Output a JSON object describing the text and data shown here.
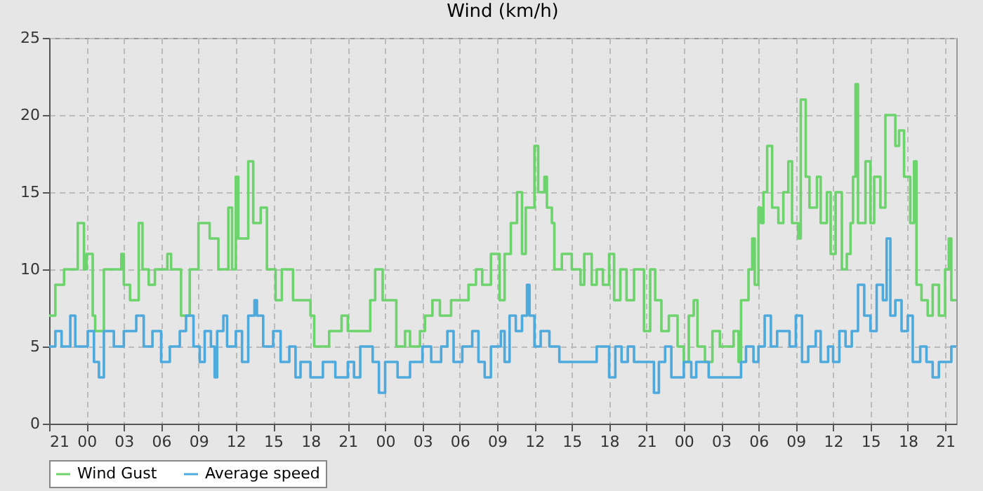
{
  "chart_data": {
    "type": "step",
    "title": "Wind (km/h)",
    "xlim": [
      "--01-01T21:00",
      "--01-04T21:54"
    ],
    "xticks": [
      {
        "value": "--01-01T21:00",
        "label": "21"
      },
      {
        "value": "--01-02T00:00",
        "label": "00"
      },
      {
        "value": "--01-02T03:00",
        "label": "03"
      },
      {
        "value": "--01-02T06:00",
        "label": "06"
      },
      {
        "value": "--01-02T09:00",
        "label": "09"
      },
      {
        "value": "--01-02T12:00",
        "label": "12"
      },
      {
        "value": "--01-02T15:00",
        "label": "15"
      },
      {
        "value": "--01-02T18:00",
        "label": "18"
      },
      {
        "value": "--01-02T21:00",
        "label": "21"
      },
      {
        "value": "--01-03T00:00",
        "label": "00"
      },
      {
        "value": "--01-03T03:00",
        "label": "03"
      },
      {
        "value": "--01-03T06:00",
        "label": "06"
      },
      {
        "value": "--01-03T09:00",
        "label": "09"
      },
      {
        "value": "--01-03T12:00",
        "label": "12"
      },
      {
        "value": "--01-03T15:00",
        "label": "15"
      },
      {
        "value": "--01-03T18:00",
        "label": "18"
      },
      {
        "value": "--01-03T21:00",
        "label": "21"
      },
      {
        "value": "--01-04T00:00",
        "label": "00"
      },
      {
        "value": "--01-04T03:00",
        "label": "03"
      },
      {
        "value": "--01-04T06:00",
        "label": "06"
      },
      {
        "value": "--01-04T09:00",
        "label": "09"
      },
      {
        "value": "--01-04T12:00",
        "label": "12"
      },
      {
        "value": "--01-04T15:00",
        "label": "15"
      },
      {
        "value": "--01-04T18:00",
        "label": "18"
      },
      {
        "value": "--01-04T21:00",
        "label": "21"
      }
    ],
    "ylim": [
      0,
      25
    ],
    "yticks": [
      0,
      5,
      10,
      15,
      20,
      25
    ],
    "grid": true,
    "line_style": "solid",
    "legend": "bottom",
    "series": [
      {
        "name": "Wind Gust",
        "color": "#6dd36d",
        "x": [
          "--01-01T21:00",
          "--01-01T21:30",
          "--01-01T22:12",
          "--01-01T23:18",
          "--01-01T23:48",
          "--01-02T00:00",
          "--01-02T00:30",
          "--01-02T00:42",
          "--01-02T01:24",
          "--01-02T02:48",
          "--01-02T03:00",
          "--01-02T03:30",
          "--01-02T04:12",
          "--01-02T04:30",
          "--01-02T05:00",
          "--01-02T05:30",
          "--01-02T06:30",
          "--01-02T06:48",
          "--01-02T07:36",
          "--01-02T08:18",
          "--01-02T09:00",
          "--01-02T09:54",
          "--01-02T10:36",
          "--01-02T11:24",
          "--01-02T11:42",
          "--01-02T12:00",
          "--01-02T12:12",
          "--01-02T12:48",
          "--01-02T13:00",
          "--01-02T13:24",
          "--01-02T14:00",
          "--01-02T14:30",
          "--01-02T15:12",
          "--01-02T15:42",
          "--01-02T16:36",
          "--01-02T17:00",
          "--01-02T18:00",
          "--01-02T18:18",
          "--01-02T19:30",
          "--01-02T20:30",
          "--01-02T21:00",
          "--01-02T22:00",
          "--01-02T22:48",
          "--01-02T23:12",
          "--01-02T23:48",
          "--01-03T00:18",
          "--01-03T00:54",
          "--01-03T01:36",
          "--01-03T02:00",
          "--01-03T02:48",
          "--01-03T03:12",
          "--01-03T03:48",
          "--01-03T04:24",
          "--01-03T05:18",
          "--01-03T06:06",
          "--01-03T06:42",
          "--01-03T07:18",
          "--01-03T07:48",
          "--01-03T08:30",
          "--01-03T09:12",
          "--01-03T09:36",
          "--01-03T10:06",
          "--01-03T10:36",
          "--01-03T11:00",
          "--01-03T11:18",
          "--01-03T12:00",
          "--01-03T12:18",
          "--01-03T12:48",
          "--01-03T13:00",
          "--01-03T13:24",
          "--01-03T13:36",
          "--01-03T14:12",
          "--01-03T15:00",
          "--01-03T15:42",
          "--01-03T16:00",
          "--01-03T16:36",
          "--01-03T17:00",
          "--01-03T17:30",
          "--01-03T18:00",
          "--01-03T18:24",
          "--01-03T18:54",
          "--01-03T19:24",
          "--01-03T20:00",
          "--01-03T20:48",
          "--01-03T21:18",
          "--01-03T21:42",
          "--01-03T22:12",
          "--01-03T22:48",
          "--01-03T23:30",
          "--01-04T00:00",
          "--01-04T00:24",
          "--01-04T00:48",
          "--01-04T01:06",
          "--01-04T01:42",
          "--01-04T02:18",
          "--01-04T02:54",
          "--01-04T03:24",
          "--01-04T04:00",
          "--01-04T04:24",
          "--01-04T04:36",
          "--01-04T05:12",
          "--01-04T05:30",
          "--01-04T05:42",
          "--01-04T06:00",
          "--01-04T06:12",
          "--01-04T06:24",
          "--01-04T06:42",
          "--01-04T07:06",
          "--01-04T07:36",
          "--01-04T08:00",
          "--01-04T08:24",
          "--01-04T08:42",
          "--01-04T09:12",
          "--01-04T09:24",
          "--01-04T09:48",
          "--01-04T10:06",
          "--01-04T10:42",
          "--01-04T11:00",
          "--01-04T11:30",
          "--01-04T11:48",
          "--01-04T12:12",
          "--01-04T12:42",
          "--01-04T13:06",
          "--01-04T13:24",
          "--01-04T13:36",
          "--01-04T13:48",
          "--01-04T14:00",
          "--01-04T14:36",
          "--01-04T15:00",
          "--01-04T15:18",
          "--01-04T15:48",
          "--01-04T16:12",
          "--01-04T16:42",
          "--01-04T17:00",
          "--01-04T17:18",
          "--01-04T17:42",
          "--01-04T18:12",
          "--01-04T18:30",
          "--01-04T18:42",
          "--01-04T19:06",
          "--01-04T19:36",
          "--01-04T20:00",
          "--01-04T20:30",
          "--01-04T21:00",
          "--01-04T21:18",
          "--01-04T21:30",
          "--01-04T21:54"
        ],
        "values": [
          7,
          9,
          10,
          13,
          10,
          11,
          7,
          6,
          10,
          11,
          9,
          8,
          13,
          10,
          9,
          10,
          11,
          10,
          7,
          10,
          13,
          12,
          10,
          14,
          10,
          16,
          12,
          12,
          17,
          13,
          14,
          10,
          8,
          10,
          8,
          8,
          7,
          5,
          6,
          7,
          6,
          6,
          8,
          10,
          8,
          8,
          5,
          6,
          5,
          6,
          7,
          8,
          7,
          8,
          8,
          9,
          10,
          9,
          11,
          8,
          11,
          13,
          15,
          11,
          14,
          18,
          15,
          16,
          14,
          13,
          10,
          11,
          10,
          9,
          11,
          9,
          10,
          9,
          11,
          8,
          10,
          8,
          10,
          6,
          10,
          8,
          6,
          7,
          5,
          4,
          7,
          8,
          5,
          4,
          6,
          5,
          5,
          6,
          4,
          8,
          10,
          12,
          9,
          14,
          13,
          15,
          18,
          14,
          13,
          15,
          17,
          13,
          12,
          21,
          16,
          14,
          16,
          13,
          15,
          11,
          15,
          10,
          11,
          13,
          16,
          22,
          13,
          17,
          13,
          16,
          14,
          20,
          20,
          18,
          19,
          16,
          13,
          17,
          9,
          8,
          7,
          9,
          7,
          10,
          12,
          8,
          8
        ]
      },
      {
        "name": "Average speed",
        "color": "#4ea9dc",
        "x": [
          "--01-01T21:00",
          "--01-01T21:30",
          "--01-01T22:00",
          "--01-01T22:42",
          "--01-01T23:06",
          "--01-02T00:06",
          "--01-02T00:36",
          "--01-02T01:00",
          "--01-02T01:24",
          "--01-02T02:12",
          "--01-02T03:00",
          "--01-02T04:00",
          "--01-02T04:36",
          "--01-02T05:18",
          "--01-02T06:00",
          "--01-02T06:42",
          "--01-02T07:30",
          "--01-02T08:00",
          "--01-02T08:36",
          "--01-02T09:06",
          "--01-02T09:30",
          "--01-02T10:00",
          "--01-02T10:18",
          "--01-02T10:30",
          "--01-02T11:00",
          "--01-02T11:18",
          "--01-02T12:00",
          "--01-02T12:30",
          "--01-02T13:00",
          "--01-02T13:30",
          "--01-02T13:42",
          "--01-02T14:12",
          "--01-02T15:00",
          "--01-02T15:36",
          "--01-02T16:18",
          "--01-02T16:48",
          "--01-02T17:12",
          "--01-02T18:00",
          "--01-02T19:00",
          "--01-02T20:00",
          "--01-02T21:00",
          "--01-02T21:30",
          "--01-02T22:00",
          "--01-02T23:00",
          "--01-02T23:30",
          "--01-03T00:00",
          "--01-03T01:00",
          "--01-03T02:00",
          "--01-03T03:00",
          "--01-03T03:42",
          "--01-03T04:30",
          "--01-03T05:00",
          "--01-03T05:30",
          "--01-03T06:12",
          "--01-03T07:00",
          "--01-03T07:30",
          "--01-03T08:00",
          "--01-03T08:30",
          "--01-03T09:18",
          "--01-03T09:36",
          "--01-03T10:00",
          "--01-03T10:30",
          "--01-03T11:00",
          "--01-03T11:24",
          "--01-03T11:36",
          "--01-03T12:00",
          "--01-03T12:30",
          "--01-03T13:12",
          "--01-03T14:00",
          "--01-03T17:00",
          "--01-03T18:00",
          "--01-03T18:30",
          "--01-03T19:00",
          "--01-03T19:30",
          "--01-03T20:00",
          "--01-03T21:00",
          "--01-03T21:36",
          "--01-03T22:00",
          "--01-03T22:30",
          "--01-03T23:00",
          "--01-04T00:00",
          "--01-04T00:36",
          "--01-04T01:00",
          "--01-04T02:00",
          "--01-04T04:36",
          "--01-04T05:00",
          "--01-04T05:36",
          "--01-04T06:00",
          "--01-04T06:30",
          "--01-04T07:00",
          "--01-04T07:30",
          "--01-04T08:30",
          "--01-04T09:00",
          "--01-04T09:30",
          "--01-04T10:00",
          "--01-04T10:36",
          "--01-04T11:00",
          "--01-04T11:36",
          "--01-04T12:00",
          "--01-04T12:30",
          "--01-04T13:00",
          "--01-04T13:30",
          "--01-04T14:00",
          "--01-04T14:30",
          "--01-04T15:00",
          "--01-04T15:30",
          "--01-04T16:00",
          "--01-04T16:18",
          "--01-04T16:36",
          "--01-04T17:00",
          "--01-04T17:30",
          "--01-04T18:00",
          "--01-04T18:24",
          "--01-04T19:00",
          "--01-04T19:30",
          "--01-04T20:00",
          "--01-04T20:30",
          "--01-04T21:30",
          "--01-04T21:54"
        ],
        "values": [
          5,
          6,
          5,
          7,
          5,
          6,
          4,
          3,
          6,
          5,
          6,
          7,
          5,
          6,
          4,
          5,
          6,
          7,
          5,
          4,
          6,
          5,
          3,
          6,
          7,
          5,
          6,
          4,
          7,
          8,
          7,
          5,
          6,
          4,
          5,
          3,
          4,
          3,
          4,
          3,
          4,
          3,
          5,
          4,
          2,
          4,
          3,
          4,
          5,
          4,
          5,
          6,
          4,
          5,
          6,
          4,
          3,
          5,
          6,
          4,
          7,
          6,
          7,
          9,
          7,
          5,
          6,
          5,
          4,
          5,
          3,
          5,
          4,
          5,
          4,
          4,
          2,
          4,
          5,
          3,
          4,
          3,
          4,
          3,
          4,
          5,
          4,
          5,
          7,
          5,
          6,
          5,
          7,
          4,
          5,
          6,
          4,
          5,
          4,
          6,
          5,
          6,
          9,
          7,
          6,
          9,
          8,
          12,
          7,
          8,
          6,
          7,
          4,
          5,
          4,
          3,
          4,
          5,
          5
        ]
      }
    ]
  }
}
